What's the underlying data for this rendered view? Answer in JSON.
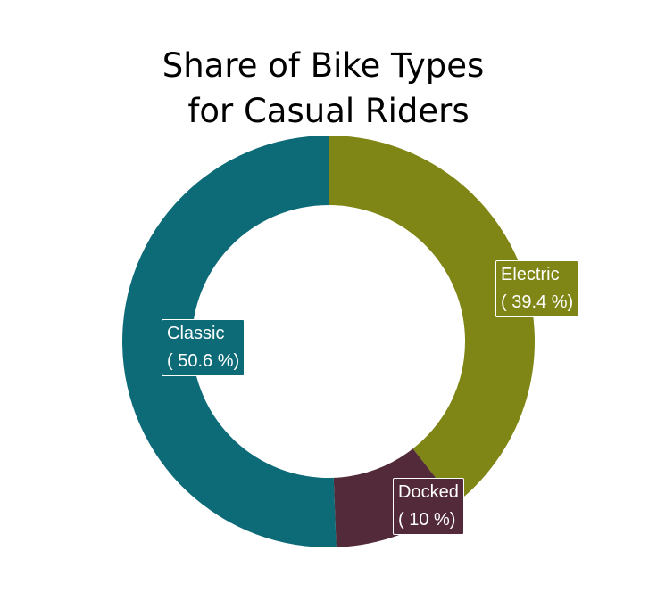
{
  "chart_data": {
    "type": "pie",
    "variant": "donut",
    "title_lines": [
      "Share of Bike Types",
      "for Casual Riders"
    ],
    "slices": [
      {
        "name": "Electric",
        "value": 39.4,
        "label": "( 39.4 %)",
        "color": "#7f8615"
      },
      {
        "name": "Docked",
        "value": 10,
        "label": "( 10 %)",
        "color": "#532a39"
      },
      {
        "name": "Classic",
        "value": 50.6,
        "label": "( 50.6 %)",
        "color": "#0d6b78"
      }
    ]
  }
}
